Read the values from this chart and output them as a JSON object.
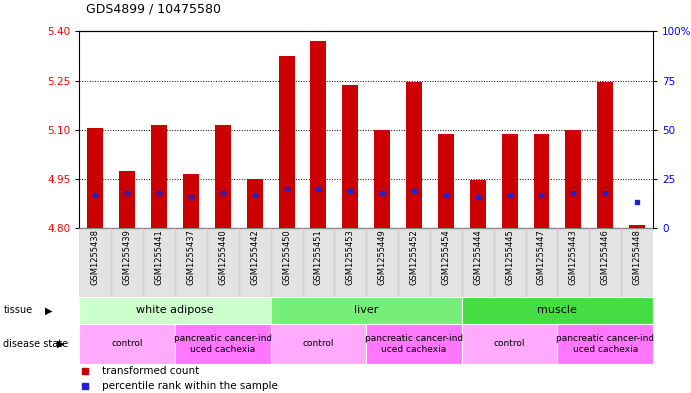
{
  "title": "GDS4899 / 10475580",
  "samples": [
    "GSM1255438",
    "GSM1255439",
    "GSM1255441",
    "GSM1255437",
    "GSM1255440",
    "GSM1255442",
    "GSM1255450",
    "GSM1255451",
    "GSM1255453",
    "GSM1255449",
    "GSM1255452",
    "GSM1255454",
    "GSM1255444",
    "GSM1255445",
    "GSM1255447",
    "GSM1255443",
    "GSM1255446",
    "GSM1255448"
  ],
  "transformed_count": [
    5.105,
    4.975,
    5.115,
    4.965,
    5.115,
    4.95,
    5.325,
    5.37,
    5.235,
    5.1,
    5.245,
    5.088,
    4.945,
    5.088,
    5.088,
    5.1,
    5.245,
    4.808
  ],
  "percentile_rank": [
    17,
    18,
    18,
    16,
    18,
    17,
    20,
    20,
    19,
    18,
    19,
    17,
    16,
    17,
    17,
    18,
    18,
    13
  ],
  "ylim_left": [
    4.8,
    5.4
  ],
  "ylim_right": [
    0,
    100
  ],
  "yticks_left": [
    4.8,
    4.95,
    5.1,
    5.25,
    5.4
  ],
  "yticks_right": [
    0,
    25,
    50,
    75,
    100
  ],
  "bar_color": "#CC0000",
  "dot_color": "#2222CC",
  "tissue_groups": [
    {
      "label": "white adipose",
      "start": 0,
      "end": 6,
      "color": "#CCFFCC"
    },
    {
      "label": "liver",
      "start": 6,
      "end": 12,
      "color": "#77EE77"
    },
    {
      "label": "muscle",
      "start": 12,
      "end": 18,
      "color": "#44DD44"
    }
  ],
  "disease_groups": [
    {
      "label": "control",
      "start": 0,
      "end": 3,
      "color": "#FFAAFF"
    },
    {
      "label": "pancreatic cancer-ind\nuced cachexia",
      "start": 3,
      "end": 6,
      "color": "#FF77FF"
    },
    {
      "label": "control",
      "start": 6,
      "end": 9,
      "color": "#FFAAFF"
    },
    {
      "label": "pancreatic cancer-ind\nuced cachexia",
      "start": 9,
      "end": 12,
      "color": "#FF77FF"
    },
    {
      "label": "control",
      "start": 12,
      "end": 15,
      "color": "#FFAAFF"
    },
    {
      "label": "pancreatic cancer-ind\nuced cachexia",
      "start": 15,
      "end": 18,
      "color": "#FF77FF"
    }
  ],
  "legend_items": [
    {
      "label": "transformed count",
      "color": "#CC0000"
    },
    {
      "label": "percentile rank within the sample",
      "color": "#2222CC"
    }
  ],
  "bar_width": 0.5
}
